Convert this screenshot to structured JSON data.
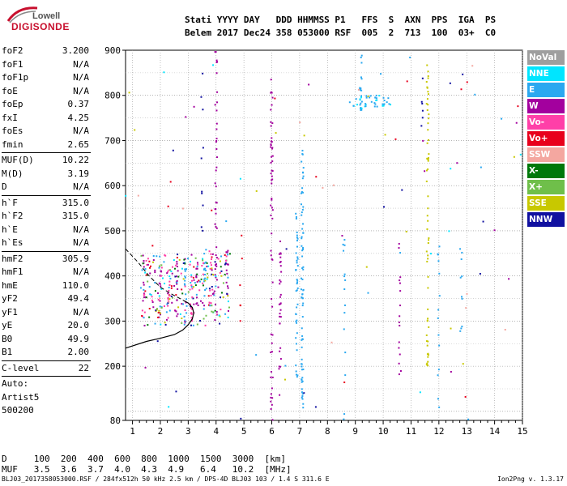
{
  "logo": {
    "top": "Lowell",
    "bottom": "DIGISONDE"
  },
  "header": {
    "line1": "Stati YYYY DAY   DDD HHMMSS P1   FFS  S  AXN  PPS  IGA  PS",
    "line2": "Belem 2017 Dec24 358 053000 RSF  005  2  713  100  03+  C0"
  },
  "params": {
    "group1": [
      {
        "name": "foF2",
        "value": "3.200"
      },
      {
        "name": "foF1",
        "value": "N/A"
      },
      {
        "name": "foF1p",
        "value": "N/A"
      },
      {
        "name": "foE",
        "value": "N/A"
      },
      {
        "name": "foEp",
        "value": "0.37"
      },
      {
        "name": "fxI",
        "value": "4.25"
      },
      {
        "name": "foEs",
        "value": "N/A"
      },
      {
        "name": "fmin",
        "value": "2.65"
      }
    ],
    "group2": [
      {
        "name": "MUF(D)",
        "value": "10.22"
      },
      {
        "name": "M(D)",
        "value": "3.19"
      },
      {
        "name": "D",
        "value": "N/A"
      }
    ],
    "group3": [
      {
        "name": "h`F",
        "value": "315.0"
      },
      {
        "name": "h`F2",
        "value": "315.0"
      },
      {
        "name": "h`E",
        "value": "N/A"
      },
      {
        "name": "h`Es",
        "value": "N/A"
      }
    ],
    "group4": [
      {
        "name": "hmF2",
        "value": "305.9"
      },
      {
        "name": "hmF1",
        "value": "N/A"
      },
      {
        "name": "hmE",
        "value": "110.0"
      },
      {
        "name": "yF2",
        "value": "49.4"
      },
      {
        "name": "yF1",
        "value": "N/A"
      },
      {
        "name": "yE",
        "value": "20.0"
      },
      {
        "name": "B0",
        "value": "49.9"
      },
      {
        "name": "B1",
        "value": "2.00"
      }
    ],
    "group5": [
      {
        "name": "C-level",
        "value": "22"
      }
    ],
    "auto": [
      "Auto:",
      "Artist5",
      "500200"
    ]
  },
  "legend": [
    {
      "label": "NoVal",
      "color": "#9e9e9e"
    },
    {
      "label": "NNE",
      "color": "#00e5ff"
    },
    {
      "label": "E",
      "color": "#2aa8f0"
    },
    {
      "label": "W",
      "color": "#a3009e"
    },
    {
      "label": "Vo-",
      "color": "#ff3fa8"
    },
    {
      "label": "Vo+",
      "color": "#e8001c"
    },
    {
      "label": "SSW",
      "color": "#f4a7a0"
    },
    {
      "label": "X-",
      "color": "#00780a"
    },
    {
      "label": "X+",
      "color": "#6fbf4a"
    },
    {
      "label": "SSE",
      "color": "#c8c800"
    },
    {
      "label": "NNW",
      "color": "#1010a0"
    }
  ],
  "muf_table": {
    "line1": "D     100  200  400  600  800  1000  1500  3000  [km]",
    "line2": "MUF   3.5  3.6  3.7  4.0  4.3  4.9   6.4   10.2  [MHz]"
  },
  "footer": {
    "left": "BLJ03_2017358053000.RSF / 284fx512h 50 kHz 2.5 km / DPS-4D BLJ03 103 / 1.4 S 311.6 E",
    "right": "Ion2Png v. 1.3.17"
  },
  "chart_data": {
    "type": "scatter",
    "xlim": [
      0.75,
      15
    ],
    "ylim": [
      80,
      900
    ],
    "x_ticks": [
      "1",
      "2",
      "3",
      "4",
      "5",
      "6",
      "7",
      "8",
      "9",
      "10",
      "11",
      "12",
      "13",
      "14",
      "15"
    ],
    "y_ticks": [
      "80",
      "200",
      "300",
      "400",
      "500",
      "600",
      "700",
      "800",
      "900"
    ],
    "grid": true,
    "profile_solid": [
      [
        0.75,
        240
      ],
      [
        1.5,
        255
      ],
      [
        2.0,
        262
      ],
      [
        2.5,
        270
      ],
      [
        2.8,
        280
      ],
      [
        3.0,
        292
      ],
      [
        3.15,
        305
      ],
      [
        3.2,
        318
      ],
      [
        3.15,
        330
      ],
      [
        3.0,
        340
      ],
      [
        2.85,
        345
      ]
    ],
    "profile_dashed": [
      [
        0.75,
        460
      ],
      [
        1.2,
        430
      ],
      [
        1.6,
        400
      ],
      [
        2.0,
        375
      ],
      [
        2.4,
        360
      ],
      [
        2.7,
        350
      ],
      [
        2.85,
        345
      ]
    ],
    "traces": [
      {
        "x": 1.4,
        "y0": 290,
        "y1": 480,
        "color": "W",
        "density": 8
      },
      {
        "x": 2.0,
        "y0": 300,
        "y1": 420,
        "color": "W",
        "density": 10
      },
      {
        "x": 2.3,
        "y0": 300,
        "y1": 420,
        "color": "Vo-",
        "density": 12
      },
      {
        "x": 2.6,
        "y0": 300,
        "y1": 440,
        "color": "W",
        "density": 14
      },
      {
        "x": 2.9,
        "y0": 300,
        "y1": 430,
        "color": "E",
        "density": 14
      },
      {
        "x": 3.1,
        "y0": 300,
        "y1": 440,
        "color": "Vo-",
        "density": 14
      },
      {
        "x": 3.3,
        "y0": 310,
        "y1": 430,
        "color": "W",
        "density": 10
      },
      {
        "x": 3.6,
        "y0": 330,
        "y1": 460,
        "color": "E",
        "density": 14
      },
      {
        "x": 3.8,
        "y0": 330,
        "y1": 460,
        "color": "Vo-",
        "density": 12
      },
      {
        "x": 4.0,
        "y0": 300,
        "y1": 900,
        "color": "W",
        "density": 40
      },
      {
        "x": 4.4,
        "y0": 330,
        "y1": 470,
        "color": "W",
        "density": 10
      },
      {
        "x": 4.9,
        "y0": 300,
        "y1": 500,
        "color": "Vo+",
        "density": 6
      },
      {
        "x": 6.0,
        "y0": 80,
        "y1": 840,
        "color": "W",
        "density": 60
      },
      {
        "x": 6.3,
        "y0": 120,
        "y1": 500,
        "color": "W",
        "density": 30
      },
      {
        "x": 6.9,
        "y0": 140,
        "y1": 540,
        "color": "E",
        "density": 40
      },
      {
        "x": 7.1,
        "y0": 100,
        "y1": 680,
        "color": "E",
        "density": 70
      },
      {
        "x": 8.6,
        "y0": 80,
        "y1": 500,
        "color": "E",
        "density": 14
      },
      {
        "x": 9.2,
        "y0": 760,
        "y1": 900,
        "color": "E",
        "density": 18
      },
      {
        "x": 10.6,
        "y0": 180,
        "y1": 480,
        "color": "W",
        "density": 16
      },
      {
        "x": 11.6,
        "y0": 200,
        "y1": 880,
        "color": "SSE",
        "density": 60
      },
      {
        "x": 12.0,
        "y0": 80,
        "y1": 500,
        "color": "E",
        "density": 14
      },
      {
        "x": 12.8,
        "y0": 260,
        "y1": 470,
        "color": "E",
        "density": 10
      },
      {
        "x": 11.4,
        "y0": 520,
        "y1": 880,
        "color": "NNW",
        "density": 6
      },
      {
        "x": 3.5,
        "y0": 500,
        "y1": 900,
        "color": "NNW",
        "density": 10
      }
    ],
    "cluster": {
      "x0": 1.3,
      "x1": 4.5,
      "y0": 290,
      "y1": 450,
      "count": 260
    },
    "band_800": {
      "x0": 8.8,
      "x1": 10.3,
      "y0": 770,
      "y1": 800,
      "count": 40
    }
  }
}
